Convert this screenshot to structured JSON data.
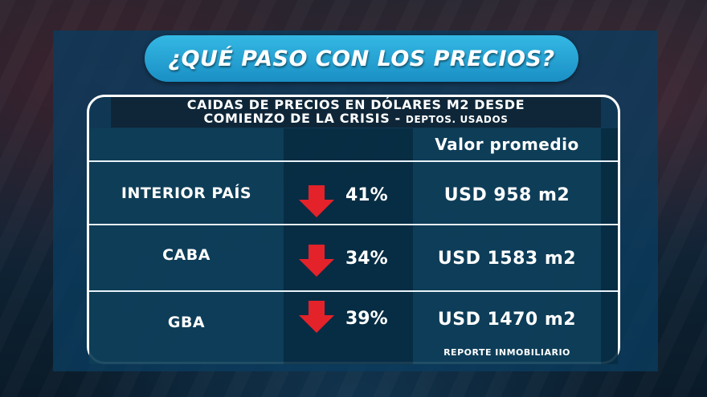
{
  "title": "¿QUÉ PASO CON LOS PRECIOS?",
  "table": {
    "header_line1": "CAIDAS DE PRECIOS EN DÓLARES M2 DESDE",
    "header_line2_main": "COMIENZO DE LA CRISIS - ",
    "header_line2_small": "Deptos. usados",
    "value_column_label": "Valor promedio",
    "rows": [
      {
        "region": "INTERIOR PAÍS",
        "drop": "41%",
        "value": "USD 958 m2"
      },
      {
        "region": "CABA",
        "drop": "34%",
        "value": "USD 1583 m2"
      },
      {
        "region": "GBA",
        "drop": "39%",
        "value": "USD 1470 m2"
      }
    ]
  },
  "source": "REPORTE INMOBILIARIO",
  "colors": {
    "title_pill": "#1a8fc4",
    "arrow_down": "#e4222a",
    "panel_border": "#ffffff"
  },
  "icons": {
    "drop_indicator": "arrow-down-icon"
  }
}
